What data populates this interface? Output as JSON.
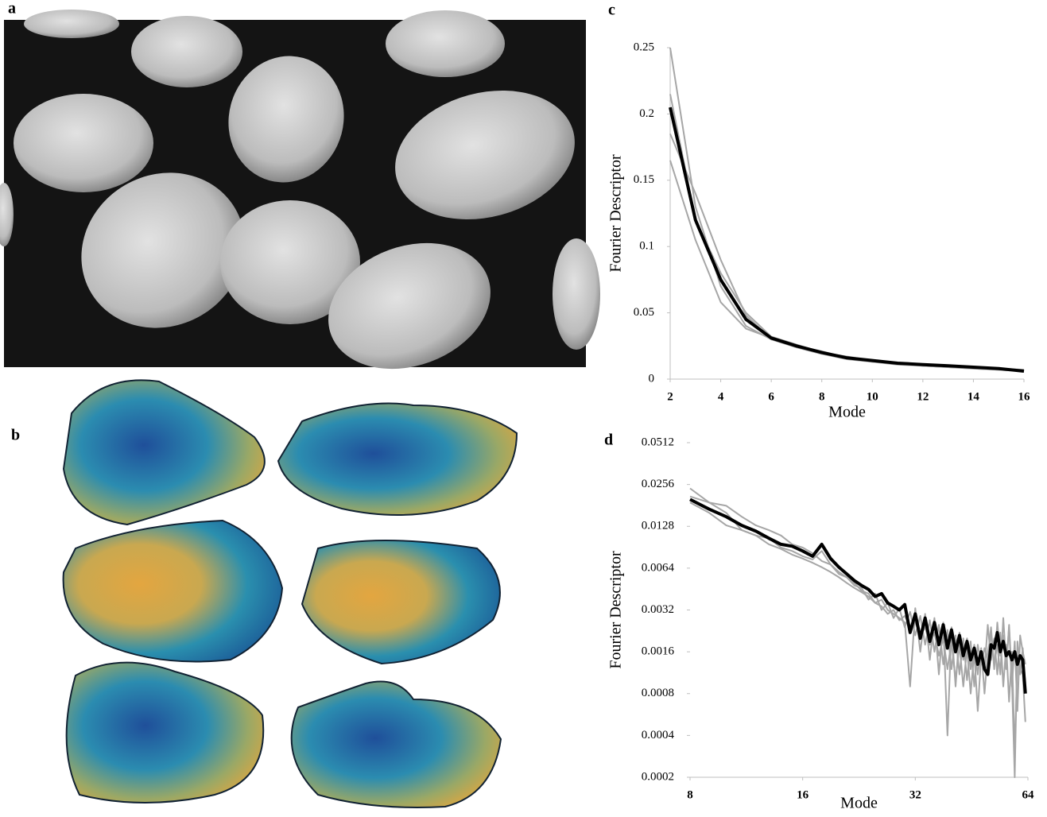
{
  "panel_labels": [
    "a",
    "b",
    "c",
    "d"
  ],
  "chart_data": [
    {
      "type": "line",
      "ylabel": "Fourier Descriptor",
      "xlabel": "Mode",
      "x": [
        2,
        3,
        4,
        5,
        6,
        7,
        8,
        9,
        10,
        11,
        12,
        13,
        14,
        15,
        16
      ],
      "xlim": [
        2,
        16
      ],
      "xticks": [
        2,
        4,
        6,
        8,
        10,
        12,
        14,
        16
      ],
      "ylim": [
        0,
        0.25
      ],
      "yticks": [
        0,
        0.05,
        0.1,
        0.15,
        0.2,
        0.25
      ],
      "series": [
        {
          "color": "#a6a6a6",
          "values": [
            0.25,
            0.13,
            0.07,
            0.04,
            0.03,
            0.024,
            0.019,
            0.015,
            0.013,
            0.011,
            0.01,
            0.009,
            0.008,
            0.007,
            0.006
          ]
        },
        {
          "color": "#a6a6a6",
          "values": [
            0.215,
            0.12,
            0.08,
            0.05,
            0.032,
            0.026,
            0.02,
            0.017,
            0.014,
            0.012,
            0.011,
            0.01,
            0.009,
            0.008,
            0.006
          ]
        },
        {
          "color": "#a6a6a6",
          "values": [
            0.185,
            0.14,
            0.09,
            0.048,
            0.03,
            0.025,
            0.021,
            0.016,
            0.014,
            0.012,
            0.01,
            0.009,
            0.009,
            0.008,
            0.007
          ]
        },
        {
          "color": "#a6a6a6",
          "values": [
            0.165,
            0.105,
            0.058,
            0.038,
            0.031,
            0.024,
            0.019,
            0.016,
            0.013,
            0.012,
            0.01,
            0.009,
            0.008,
            0.007,
            0.006
          ]
        },
        {
          "color": "#000000",
          "values": [
            0.205,
            0.12,
            0.075,
            0.045,
            0.031,
            0.025,
            0.02,
            0.016,
            0.014,
            0.012,
            0.011,
            0.01,
            0.009,
            0.008,
            0.006
          ]
        }
      ]
    },
    {
      "type": "line",
      "ylabel": "Fourier Descriptor",
      "xlabel": "Mode",
      "xscale": "log",
      "yscale": "log",
      "x": [
        8,
        9,
        10,
        11,
        12,
        13,
        14,
        15,
        16,
        17,
        18,
        19,
        20,
        21,
        22,
        23,
        24,
        25,
        26,
        27,
        28,
        29,
        30,
        31,
        32,
        33,
        34,
        35,
        36,
        37,
        38,
        39,
        40,
        41,
        42,
        43,
        44,
        45,
        46,
        47,
        48,
        49,
        50,
        51,
        52,
        53,
        54,
        55,
        56,
        57,
        58,
        59,
        60,
        61,
        62,
        63
      ],
      "xlim": [
        8,
        64
      ],
      "xticks": [
        8,
        16,
        32,
        64
      ],
      "ylim": [
        0.0002,
        0.0512
      ],
      "yticks": [
        0.0002,
        0.0004,
        0.0008,
        0.0016,
        0.0032,
        0.0064,
        0.0128,
        0.0256,
        0.0512
      ],
      "series": [
        {
          "color": "#a6a6a6",
          "values": [
            0.024,
            0.019,
            0.016,
            0.012,
            0.011,
            0.0095,
            0.0088,
            0.008,
            0.0075,
            0.007,
            0.0065,
            0.006,
            0.0055,
            0.005,
            0.0046,
            0.0043,
            0.004,
            0.0036,
            0.0034,
            0.003,
            0.0032,
            0.0027,
            0.0029,
            0.0024,
            0.0026,
            0.0021,
            0.0024,
            0.0018,
            0.0022,
            0.0015,
            0.002,
            0.0012,
            0.0019,
            0.001,
            0.0018,
            0.0009,
            0.0017,
            0.0008,
            0.0016,
            0.0006,
            0.0015,
            0.0012,
            0.0025,
            0.0014,
            0.002,
            0.0011,
            0.0022,
            0.0009,
            0.0018,
            0.0007,
            0.0016,
            0.0003,
            0.0014,
            0.0012,
            0.0011,
            0.0005
          ]
        },
        {
          "color": "#a6a6a6",
          "values": [
            0.021,
            0.019,
            0.018,
            0.015,
            0.013,
            0.012,
            0.011,
            0.0095,
            0.009,
            0.0082,
            0.0072,
            0.0068,
            0.0058,
            0.0055,
            0.0048,
            0.0046,
            0.0038,
            0.0042,
            0.0032,
            0.0036,
            0.0028,
            0.0033,
            0.0024,
            0.0031,
            0.0021,
            0.0029,
            0.0018,
            0.0027,
            0.0016,
            0.0025,
            0.0013,
            0.0023,
            0.0012,
            0.0021,
            0.0011,
            0.002,
            0.001,
            0.0019,
            0.0009,
            0.0018,
            0.0013,
            0.0017,
            0.0014,
            0.0024,
            0.0012,
            0.0026,
            0.0015,
            0.0021,
            0.0012,
            0.0025,
            0.001,
            0.0002,
            0.0019,
            0.0011,
            0.0017,
            0.0009
          ]
        },
        {
          "color": "#a6a6a6",
          "values": [
            0.019,
            0.016,
            0.013,
            0.012,
            0.011,
            0.0105,
            0.009,
            0.0085,
            0.0078,
            0.0074,
            0.0085,
            0.0068,
            0.006,
            0.0055,
            0.005,
            0.0044,
            0.0042,
            0.0036,
            0.0038,
            0.0032,
            0.003,
            0.0028,
            0.0026,
            0.0009,
            0.0033,
            0.0016,
            0.003,
            0.0014,
            0.0028,
            0.0011,
            0.0026,
            0.0004,
            0.0024,
            0.0009,
            0.0022,
            0.0014,
            0.002,
            0.0012,
            0.0018,
            0.0011,
            0.0017,
            0.0008,
            0.0016,
            0.0021,
            0.0013,
            0.0018,
            0.0011,
            0.0028,
            0.0013,
            0.0024,
            0.0009,
            0.0019,
            0.0006,
            0.0021,
            0.0016,
            0.0013
          ]
        },
        {
          "color": "#000000",
          "values": [
            0.02,
            0.017,
            0.015,
            0.013,
            0.0118,
            0.0105,
            0.0095,
            0.0092,
            0.0085,
            0.0078,
            0.0095,
            0.0075,
            0.0065,
            0.0058,
            0.0052,
            0.0048,
            0.0045,
            0.004,
            0.0042,
            0.0036,
            0.0034,
            0.0032,
            0.0035,
            0.0022,
            0.003,
            0.002,
            0.0028,
            0.0019,
            0.0026,
            0.0018,
            0.0025,
            0.0017,
            0.0023,
            0.0016,
            0.0021,
            0.0015,
            0.0019,
            0.0014,
            0.0017,
            0.0013,
            0.0016,
            0.0012,
            0.0011,
            0.0018,
            0.0017,
            0.0022,
            0.0016,
            0.0019,
            0.0015,
            0.0016,
            0.0014,
            0.0016,
            0.0013,
            0.0015,
            0.0014,
            0.0008
          ]
        }
      ]
    }
  ]
}
